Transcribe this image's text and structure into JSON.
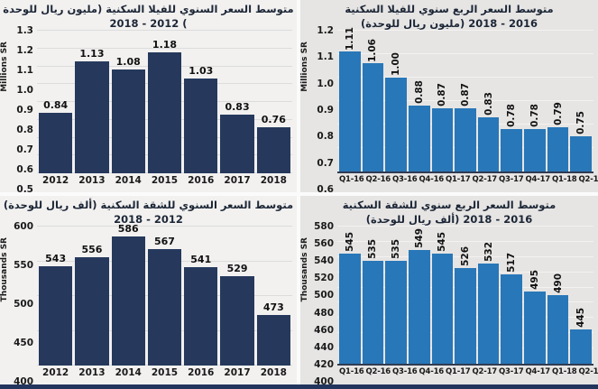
{
  "page": {
    "background": "#fbfbfb",
    "footer_bar_color": "#22355C",
    "left_panel_bg": "#F2F1F0",
    "right_panel_bg": "#E6E5E4",
    "dark_bar_color": "#26395D",
    "blue_bar_color": "#2877B8",
    "text_color": "#1a1a1a"
  },
  "chart_data": [
    {
      "type": "bar",
      "title": "متوسط السعر السنوي للفيلا السكنية (مليون ريال للوحدة) 2012 - 2018",
      "title_lines": [
        {
          "text": "متوسط السعر السنوي للفيلا السكنية (مليون ريال للوحدة",
          "dir": "rtl"
        },
        {
          "text": ") 2012 - 2018",
          "dir": "rtl"
        }
      ],
      "ylabel": "Millions SR",
      "ylim": [
        0.5,
        1.3
      ],
      "ytick_step": 0.1,
      "ytick_decimals": 1,
      "categories": [
        "2012",
        "2013",
        "2014",
        "2015",
        "2016",
        "2017",
        "2018"
      ],
      "values": [
        0.84,
        1.13,
        1.08,
        1.18,
        1.03,
        0.83,
        0.76
      ],
      "value_decimals": 2,
      "rotated_value_labels": false,
      "bar_color": "#26395D",
      "panel_bg": "#F2F1F0",
      "grid_color": "#DCDCDC",
      "axis_line": false,
      "bar_gap": 3
    },
    {
      "type": "bar",
      "title": "متوسط السعر الربع سنوي للفيلا السكنية (مليون ريال للوحدة) 2016 - 2018",
      "title_lines": [
        {
          "text": "متوسط السعر الربع سنوي للفيلا السكنية",
          "dir": "rtl"
        },
        {
          "text": "(مليون ريال للوحدة) 2016 - 2018",
          "dir": "ltr"
        }
      ],
      "ylabel": "Millions SR",
      "ylim": [
        0.6,
        1.2
      ],
      "ytick_step": 0.1,
      "ytick_decimals": 1,
      "categories": [
        "Q1-16",
        "Q2-16",
        "Q3-16",
        "Q4-16",
        "Q1-17",
        "Q2-17",
        "Q3-17",
        "Q4-17",
        "Q1-18",
        "Q2-18",
        "Q3-18"
      ],
      "values": [
        1.11,
        1.06,
        1.0,
        0.88,
        0.87,
        0.87,
        0.83,
        0.78,
        0.78,
        0.79,
        0.75
      ],
      "value_decimals": 2,
      "rotated_value_labels": true,
      "bar_color": "#2877B8",
      "panel_bg": "#E6E5E4",
      "grid_color": "#F3F2F1",
      "axis_line": true,
      "bar_gap": 2
    },
    {
      "type": "bar",
      "title": "متوسط السعر السنوي للشقة السكنية (ألف ريال للوحدة) 2012 - 2018",
      "title_lines": [
        {
          "text": "متوسط السعر السنوي للشقة السكنية (ألف ريال للوحدة)",
          "dir": "rtl"
        },
        {
          "text": "2012 - 2018",
          "dir": "rtl"
        }
      ],
      "ylabel": "Thousands SR",
      "ylim": [
        400,
        600
      ],
      "ytick_step": 50,
      "ytick_decimals": 0,
      "categories": [
        "2012",
        "2013",
        "2014",
        "2015",
        "2016",
        "2017",
        "2018"
      ],
      "values": [
        543,
        556,
        586,
        567,
        541,
        529,
        473
      ],
      "value_decimals": 0,
      "rotated_value_labels": false,
      "bar_color": "#26395D",
      "panel_bg": "#F2F1F0",
      "grid_color": "#DCDCDC",
      "axis_line": false,
      "bar_gap": 3
    },
    {
      "type": "bar",
      "title": "متوسط السعر الربع سنوي للشقة السكنية (ألف ريال للوحدة) 2016 - 2018",
      "title_lines": [
        {
          "text": "متوسط السعر الربع سنوي للشقة السكنية",
          "dir": "rtl"
        },
        {
          "text": "(ألف ريال للوحدة) 2016 - 2018",
          "dir": "ltr"
        }
      ],
      "ylabel": "Thousands SR",
      "ylim": [
        400,
        580
      ],
      "ytick_step": 20,
      "ytick_decimals": 0,
      "categories": [
        "Q1-16",
        "Q2-16",
        "Q3-16",
        "Q4-16",
        "Q1-17",
        "Q2-17",
        "Q3-17",
        "Q4-17",
        "Q1-18",
        "Q2-18",
        "Q3-18"
      ],
      "values": [
        545,
        535,
        535,
        549,
        545,
        526,
        532,
        517,
        495,
        490,
        445
      ],
      "value_decimals": 0,
      "rotated_value_labels": true,
      "bar_color": "#2877B8",
      "panel_bg": "#E6E5E4",
      "grid_color": "#F3F2F1",
      "axis_line": true,
      "bar_gap": 2
    }
  ]
}
